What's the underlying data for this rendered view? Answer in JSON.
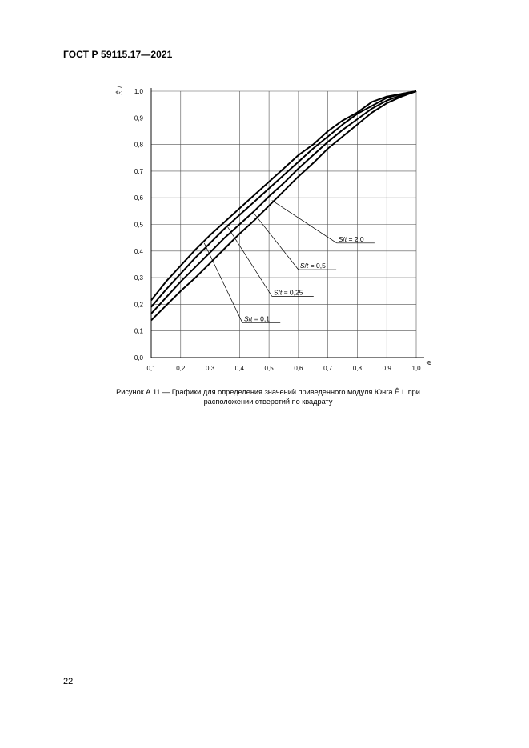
{
  "header": {
    "document_code": "ГОСТ Р 59115.17—2021"
  },
  "figure": {
    "caption_line1": "Рисунок А.11 — Графики для определения значений приведенного модуля Юнга Ê⊥ при",
    "caption_line2": "расположении отверстий по квадрату"
  },
  "page_number": "22",
  "chart_data": {
    "type": "line",
    "xlabel": "φ",
    "ylabel": "Ê⊥",
    "xlim": [
      0.1,
      1.0
    ],
    "ylim": [
      0.0,
      1.0
    ],
    "grid": true,
    "x_ticks": [
      "0,1",
      "0,2",
      "0,3",
      "0,4",
      "0,5",
      "0,6",
      "0,7",
      "0,8",
      "0,9",
      "1,0"
    ],
    "y_ticks": [
      "0,0",
      "0,1",
      "0,2",
      "0,3",
      "0,4",
      "0,5",
      "0,6",
      "0,7",
      "0,8",
      "0,9",
      "1,0"
    ],
    "x": [
      0.1,
      0.15,
      0.2,
      0.25,
      0.3,
      0.35,
      0.4,
      0.45,
      0.5,
      0.55,
      0.6,
      0.65,
      0.7,
      0.75,
      0.8,
      0.85,
      0.9,
      0.95,
      1.0
    ],
    "series": [
      {
        "name": "S/t = 2,0",
        "values": [
          0.215,
          0.285,
          0.345,
          0.405,
          0.46,
          0.51,
          0.56,
          0.61,
          0.66,
          0.71,
          0.76,
          0.8,
          0.85,
          0.89,
          0.92,
          0.96,
          0.98,
          0.99,
          1.0
        ]
      },
      {
        "name": "S/t = 0,5",
        "values": [
          0.19,
          0.255,
          0.315,
          0.375,
          0.43,
          0.485,
          0.535,
          0.585,
          0.635,
          0.685,
          0.735,
          0.785,
          0.83,
          0.875,
          0.915,
          0.945,
          0.975,
          0.99,
          1.0
        ]
      },
      {
        "name": "S/t = 0,25",
        "values": [
          0.165,
          0.225,
          0.285,
          0.34,
          0.395,
          0.45,
          0.5,
          0.55,
          0.605,
          0.655,
          0.71,
          0.76,
          0.81,
          0.855,
          0.895,
          0.935,
          0.965,
          0.985,
          1.0
        ]
      },
      {
        "name": "S/t = 0,1",
        "values": [
          0.14,
          0.195,
          0.25,
          0.3,
          0.355,
          0.41,
          0.465,
          0.515,
          0.57,
          0.625,
          0.68,
          0.73,
          0.785,
          0.83,
          0.875,
          0.92,
          0.955,
          0.98,
          1.0
        ]
      }
    ],
    "annotations": [
      {
        "series": 0,
        "label_parts": [
          "S",
          "/",
          "t",
          " = 2,0"
        ],
        "point_x": 0.51,
        "point_y": 0.59,
        "label_x": 0.73,
        "label_y": 0.43
      },
      {
        "series": 1,
        "label_parts": [
          "S",
          "/",
          "t",
          " = 0,5"
        ],
        "point_x": 0.45,
        "point_y": 0.54,
        "label_x": 0.6,
        "label_y": 0.33
      },
      {
        "series": 2,
        "label_parts": [
          "S",
          "/",
          "t",
          " = 0,25"
        ],
        "point_x": 0.36,
        "point_y": 0.49,
        "label_x": 0.51,
        "label_y": 0.23
      },
      {
        "series": 3,
        "label_parts": [
          "S",
          "/",
          "t",
          " = 0,1"
        ],
        "point_x": 0.28,
        "point_y": 0.43,
        "label_x": 0.41,
        "label_y": 0.13
      }
    ]
  }
}
